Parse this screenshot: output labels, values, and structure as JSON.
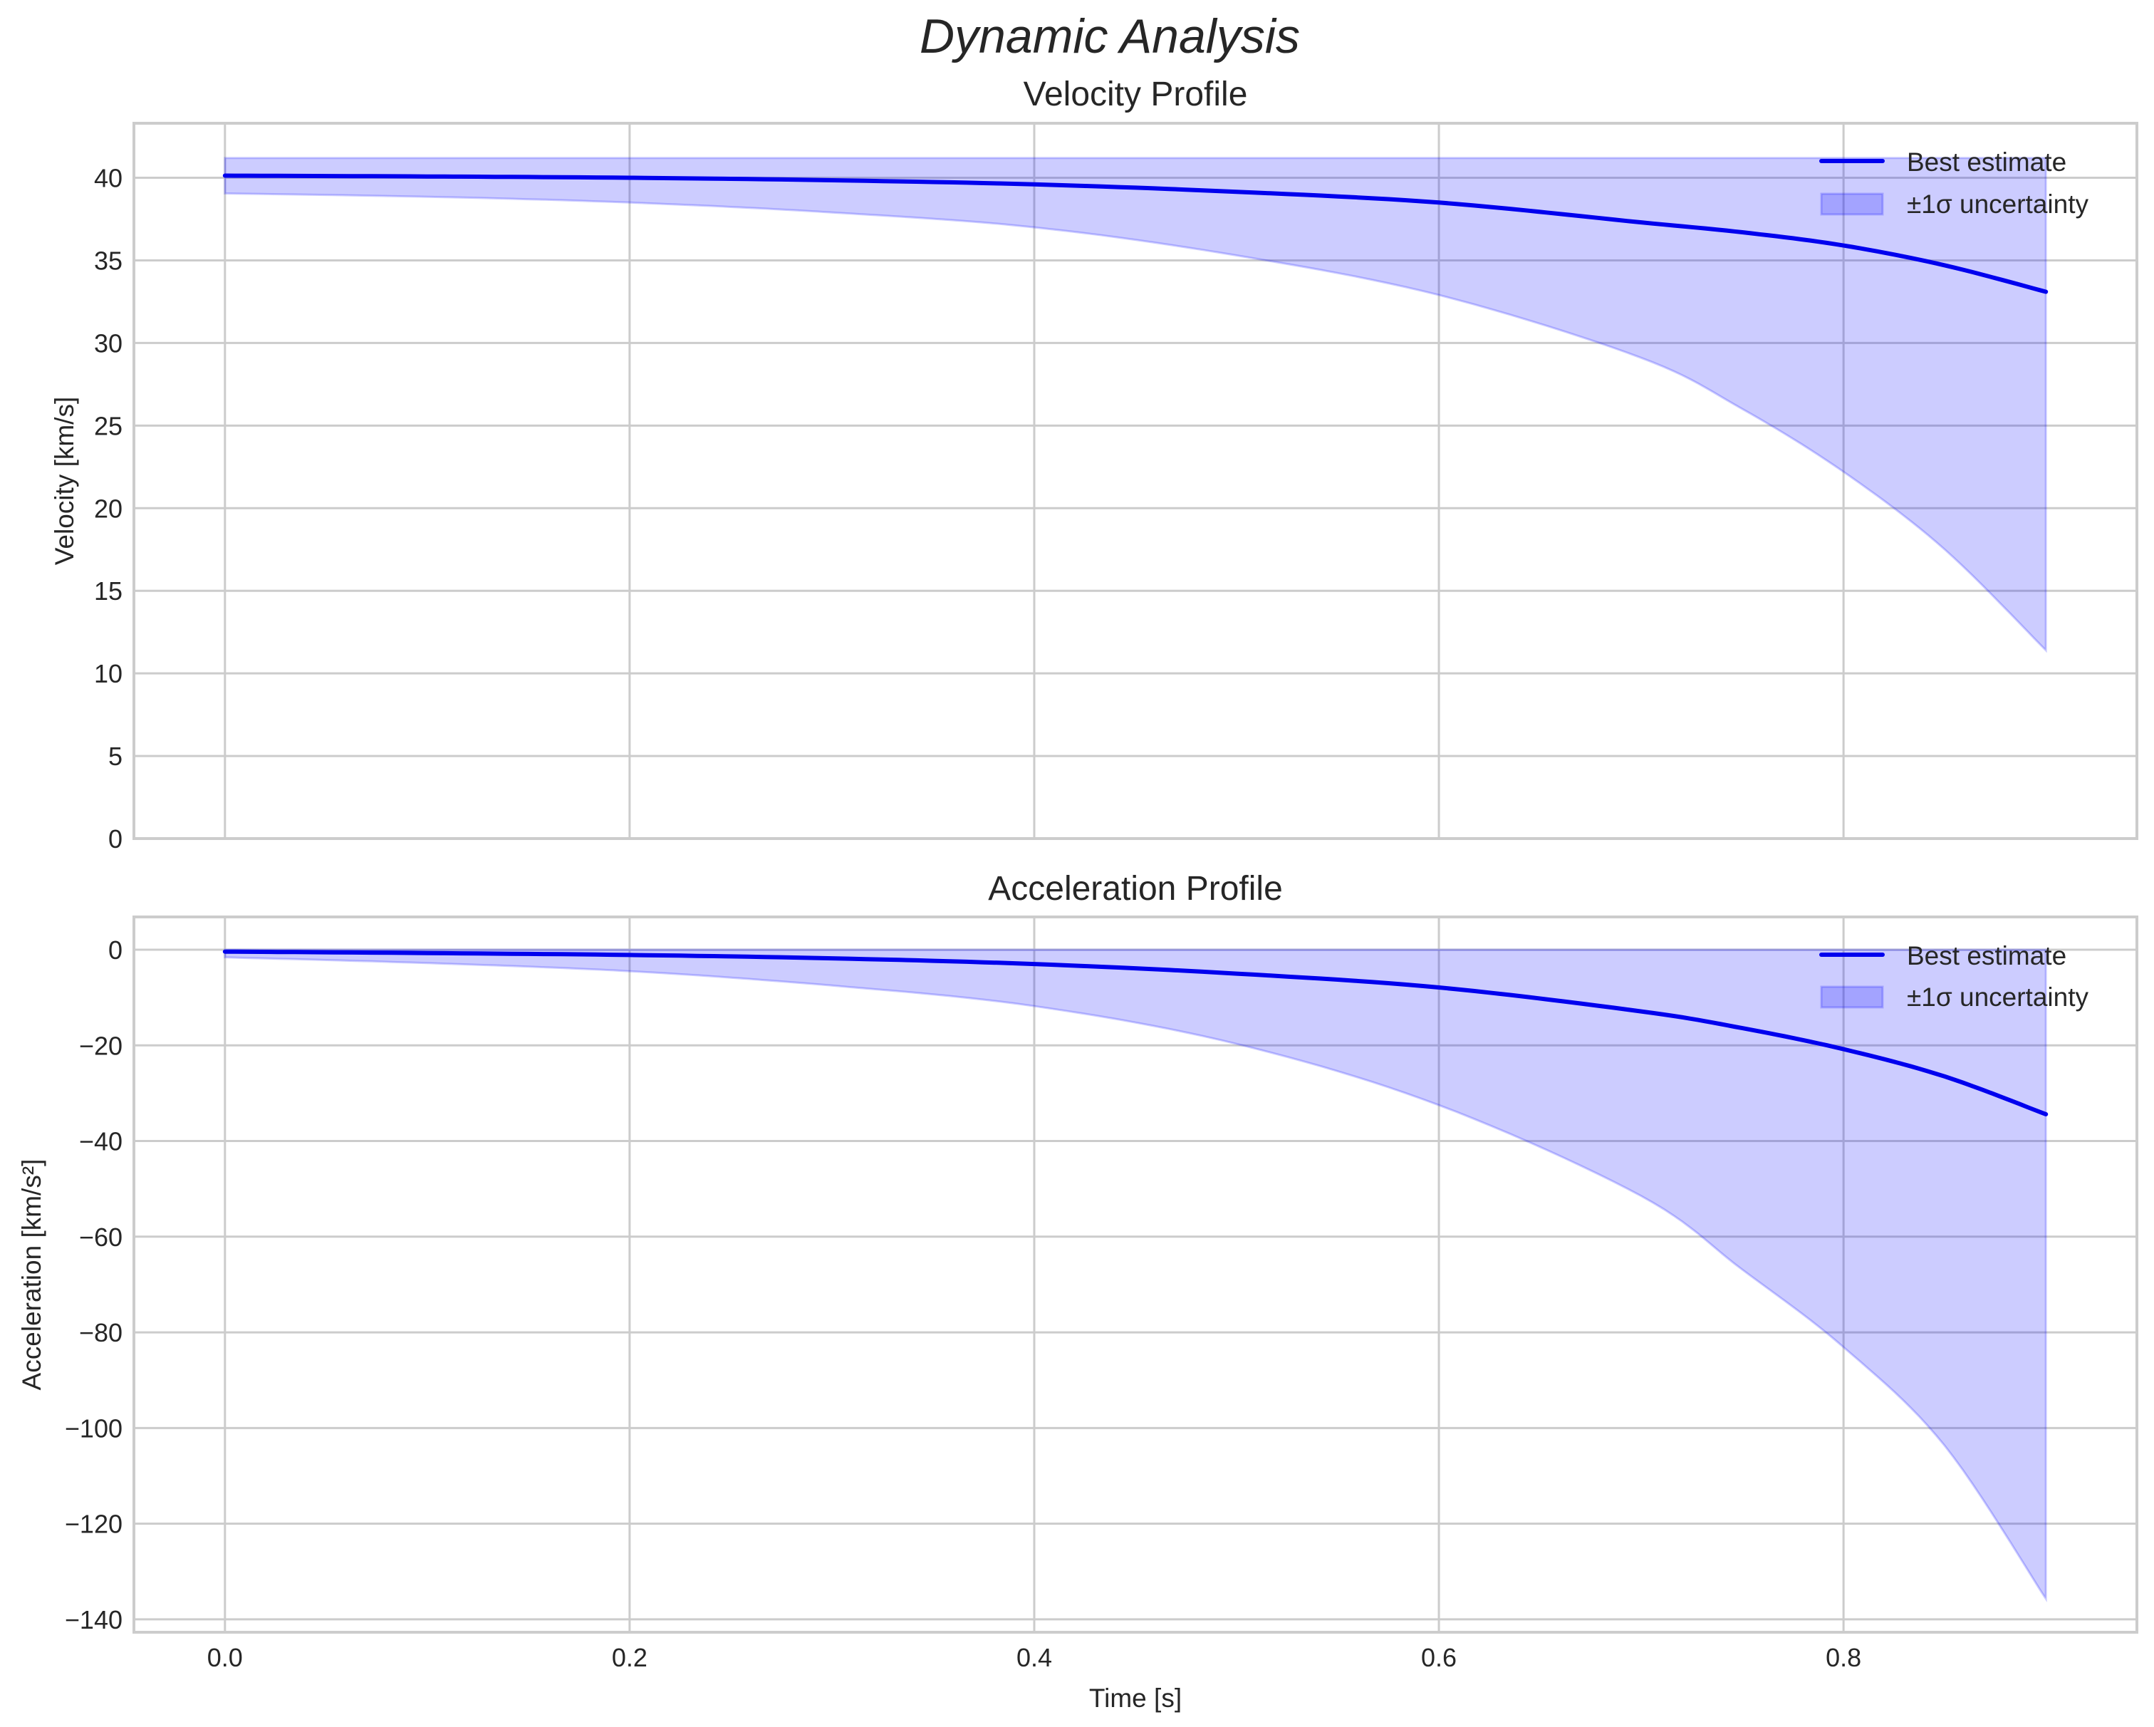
{
  "figure": {
    "title": "Dynamic Analysis"
  },
  "colors": {
    "line": "#0000ee",
    "band": "#0000ff",
    "grid": "#cccccc",
    "text": "#262626"
  },
  "panels": [
    {
      "title": "Velocity Profile",
      "ylabel": "Velocity [km/s]",
      "xlabel": "",
      "yticks": [
        "0",
        "5",
        "10",
        "15",
        "20",
        "25",
        "30",
        "35",
        "40"
      ],
      "legend": {
        "line_label": "Best estimate",
        "band_label": "±1σ uncertainty"
      }
    },
    {
      "title": "Acceleration Profile",
      "ylabel": "Acceleration [km/s²]",
      "xlabel": "Time [s]",
      "yticks": [
        "0",
        "−20",
        "−40",
        "−60",
        "−80",
        "−100",
        "−120",
        "−140"
      ],
      "xticks": [
        "0.0",
        "0.2",
        "0.4",
        "0.6",
        "0.8"
      ],
      "legend": {
        "line_label": "Best estimate",
        "band_label": "±1σ uncertainty"
      }
    }
  ],
  "chart_data": [
    {
      "type": "line",
      "title": "Velocity Profile",
      "suptitle": "Dynamic Analysis",
      "xlabel": "",
      "ylabel": "Velocity [km/s]",
      "xlim": [
        -0.045,
        0.945
      ],
      "ylim": [
        0,
        43.3
      ],
      "xticks": [
        0.0,
        0.2,
        0.4,
        0.6,
        0.8
      ],
      "yticks": [
        0,
        5,
        10,
        15,
        20,
        25,
        30,
        35,
        40
      ],
      "grid": true,
      "legend_position": "upper right",
      "x": [
        0.0,
        0.1,
        0.2,
        0.3,
        0.4,
        0.5,
        0.6,
        0.7,
        0.75,
        0.8,
        0.85,
        0.9
      ],
      "series": [
        {
          "name": "Best estimate",
          "kind": "line",
          "values": [
            40.13,
            40.08,
            40.0,
            39.85,
            39.6,
            39.15,
            38.5,
            37.3,
            36.7,
            35.9,
            34.7,
            33.1
          ]
        },
        {
          "name": "±1σ uncertainty (upper)",
          "kind": "band-upper",
          "values": [
            41.2,
            41.2,
            41.2,
            41.2,
            41.2,
            41.2,
            41.2,
            41.2,
            41.2,
            41.2,
            41.2,
            41.2
          ]
        },
        {
          "name": "±1σ uncertainty (lower)",
          "kind": "band-lower",
          "values": [
            39.05,
            38.85,
            38.5,
            37.9,
            37.0,
            35.3,
            32.9,
            29.1,
            26.0,
            22.2,
            17.5,
            11.4
          ]
        }
      ]
    },
    {
      "type": "line",
      "title": "Acceleration Profile",
      "xlabel": "Time [s]",
      "ylabel": "Acceleration [km/s²]",
      "xlim": [
        -0.045,
        0.945
      ],
      "ylim": [
        -142.7,
        6.85
      ],
      "xticks": [
        0.0,
        0.2,
        0.4,
        0.6,
        0.8
      ],
      "yticks": [
        0,
        -20,
        -40,
        -60,
        -80,
        -100,
        -120,
        -140
      ],
      "grid": true,
      "legend_position": "upper right",
      "x": [
        0.0,
        0.1,
        0.2,
        0.3,
        0.4,
        0.5,
        0.6,
        0.7,
        0.75,
        0.8,
        0.85,
        0.9
      ],
      "series": [
        {
          "name": "Best estimate",
          "kind": "line",
          "values": [
            -0.4,
            -0.7,
            -1.1,
            -1.8,
            -3.0,
            -5.0,
            -7.9,
            -12.9,
            -16.4,
            -20.8,
            -26.5,
            -34.4
          ]
        },
        {
          "name": "±1σ uncertainty (upper)",
          "kind": "band-upper",
          "values": [
            0,
            0,
            0,
            0,
            0,
            0,
            0,
            0,
            0,
            0,
            0,
            0
          ]
        },
        {
          "name": "±1σ uncertainty (lower)",
          "kind": "band-lower",
          "values": [
            -1.6,
            -2.8,
            -4.5,
            -7.5,
            -11.8,
            -19.7,
            -32.5,
            -51.5,
            -66.9,
            -83.1,
            -103.7,
            -135.7
          ]
        }
      ]
    }
  ]
}
